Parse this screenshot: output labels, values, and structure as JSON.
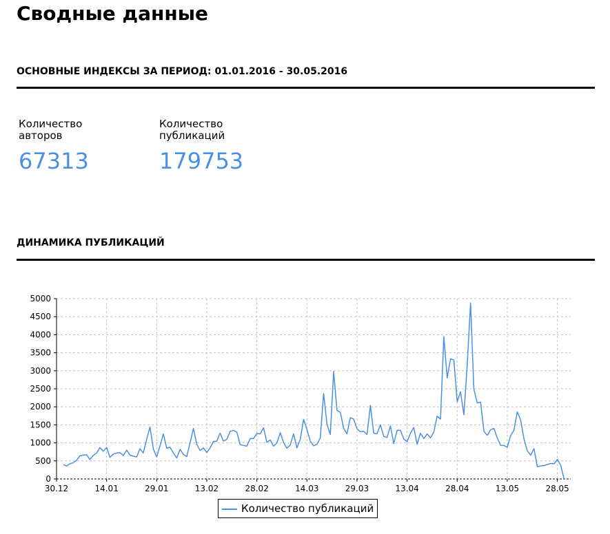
{
  "page": {
    "title": "Сводные данные"
  },
  "summary": {
    "heading": "ОСНОВНЫЕ ИНДЕКСЫ ЗА ПЕРИОД: 01.01.2016 - 30.05.2016",
    "stats": [
      {
        "label_line1": "Количество",
        "label_line2": "авторов",
        "value": "67313"
      },
      {
        "label_line1": "Количество",
        "label_line2": "публикаций",
        "value": "179753"
      }
    ]
  },
  "dynamics": {
    "heading": "ДИНАМИКА ПУБЛИКАЦИЙ"
  },
  "colors": {
    "accent": "#4a90e2",
    "grid": "#c0c0c0",
    "text": "#000000"
  },
  "chart_data": {
    "type": "line",
    "x_start": "01.01.2016",
    "x_step": "1 day",
    "xlim": [
      "30.12.2015",
      "01.06.2016"
    ],
    "ylim": [
      0,
      5000
    ],
    "y_ticks": [
      0,
      500,
      1000,
      1500,
      2000,
      2500,
      3000,
      3500,
      4000,
      4500,
      5000
    ],
    "x_tick_labels": [
      "30.12",
      "14.01",
      "29.01",
      "13.02",
      "28.02",
      "14.03",
      "29.03",
      "13.04",
      "28.04",
      "13.05",
      "28.05"
    ],
    "x_tick_dates": [
      "30.12.2015",
      "14.01.2016",
      "29.01.2016",
      "13.02.2016",
      "28.02.2016",
      "14.03.2016",
      "29.03.2016",
      "13.04.2016",
      "28.04.2016",
      "13.05.2016",
      "28.05.2016"
    ],
    "grid": true,
    "legend_position": "bottom-center",
    "series": [
      {
        "name": "Количество публикаций",
        "color": "#4a90e2",
        "values": [
          400,
          360,
          420,
          450,
          520,
          640,
          660,
          670,
          540,
          650,
          720,
          870,
          770,
          870,
          600,
          690,
          720,
          730,
          650,
          800,
          660,
          630,
          610,
          840,
          720,
          1100,
          1440,
          830,
          610,
          920,
          1250,
          850,
          880,
          720,
          580,
          820,
          680,
          620,
          1000,
          1400,
          960,
          790,
          860,
          730,
          860,
          1040,
          1050,
          1270,
          1050,
          1100,
          1320,
          1350,
          1300,
          950,
          930,
          910,
          1120,
          1120,
          1260,
          1250,
          1420,
          1020,
          1080,
          910,
          1000,
          1280,
          1010,
          850,
          940,
          1250,
          860,
          1100,
          1650,
          1370,
          1050,
          920,
          960,
          1140,
          2370,
          1520,
          1230,
          2980,
          1900,
          1850,
          1400,
          1250,
          1700,
          1660,
          1390,
          1310,
          1320,
          1230,
          2040,
          1270,
          1250,
          1500,
          1180,
          1150,
          1470,
          980,
          1350,
          1350,
          1110,
          1030,
          1270,
          1430,
          960,
          1270,
          1120,
          1250,
          1140,
          1300,
          1740,
          1660,
          3950,
          2800,
          3330,
          3300,
          2140,
          2420,
          1780,
          3150,
          4880,
          2490,
          2110,
          2130,
          1320,
          1210,
          1360,
          1400,
          1140,
          930,
          930,
          880,
          1200,
          1350,
          1860,
          1640,
          1110,
          780,
          660,
          840,
          340,
          360,
          370,
          400,
          430,
          420,
          540,
          380,
          0
        ]
      }
    ]
  }
}
